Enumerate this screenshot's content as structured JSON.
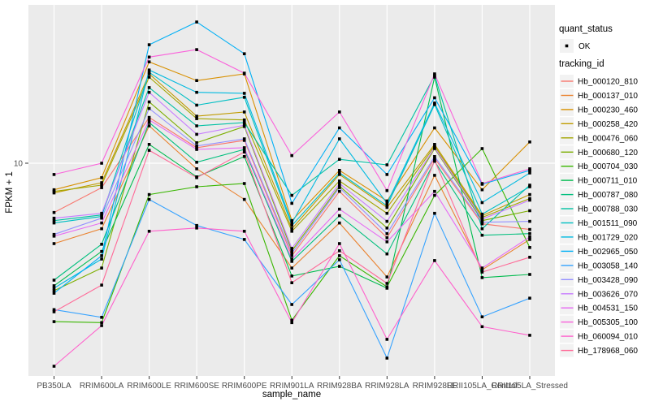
{
  "figure": {
    "panel_background": "#EBEBEB",
    "grid_color": "#FFFFFF",
    "axis_text_color": "#4D4D4D",
    "tick_color": "#333333",
    "legend_key_background": "#F2F2F2",
    "point_color": "#000000"
  },
  "axes": {
    "x_title": "sample_name",
    "y_title": "FPKM + 1",
    "y_tick_label": "10"
  },
  "legend": {
    "quant_status": {
      "title": "quant_status",
      "items": [
        {
          "label": "OK",
          "marker": "point"
        }
      ]
    },
    "tracking_id": {
      "title": "tracking_id"
    }
  },
  "chart_data": {
    "type": "line",
    "title": "",
    "xlabel": "sample_name",
    "ylabel": "FPKM + 1",
    "y_scale": "log10",
    "ylim": [
      1.2,
      50
    ],
    "y_tick_labels": [
      "10"
    ],
    "grid": true,
    "legend_position": "right",
    "marker": "point",
    "categories": [
      "PB350LA",
      "RRIM600LA",
      "RRIM600LE",
      "RRIM600SE",
      "RRIM600PE",
      "RRIM901LA",
      "RRIM928BA",
      "RRIM928LA",
      "RRIM928LE",
      "RRII105LA_Control",
      "RRII105LA_Stressed"
    ],
    "series": [
      {
        "name": "Hb_000120_810",
        "color": "#F8766D",
        "values": [
          6.07,
          7.81,
          15.9,
          11.7,
          12.6,
          3.92,
          7.52,
          4.7,
          10.5,
          5.41,
          5.11
        ]
      },
      {
        "name": "Hb_000137_010",
        "color": "#EA8331",
        "values": [
          4.43,
          5.15,
          14.6,
          9.45,
          6.93,
          3.46,
          5.46,
          3.16,
          8.85,
          3.4,
          4.62
        ]
      },
      {
        "name": "Hb_000230_460",
        "color": "#D89000",
        "values": [
          7.64,
          8.64,
          27.9,
          23.1,
          24.7,
          5.59,
          9.3,
          6.82,
          14.3,
          7.64,
          12.4
        ]
      },
      {
        "name": "Hb_000258_420",
        "color": "#C09B00",
        "values": [
          7.4,
          8.21,
          24.7,
          16.1,
          16.8,
          5.15,
          8.92,
          6.39,
          12.1,
          5.88,
          7.28
        ]
      },
      {
        "name": "Hb_000476_060",
        "color": "#A3A500",
        "values": [
          7.52,
          8.01,
          23.9,
          15.7,
          15.5,
          5.02,
          8.35,
          6.02,
          11.9,
          5.78,
          6.99
        ]
      },
      {
        "name": "Hb_000680_120",
        "color": "#7CAE00",
        "values": [
          2.75,
          3.46,
          18.6,
          12.3,
          14.5,
          4.12,
          7.94,
          5.19,
          11.6,
          5.59,
          6.18
        ]
      },
      {
        "name": "Hb_000704_030",
        "color": "#39B600",
        "values": [
          2.01,
          1.99,
          7.28,
          7.88,
          8.14,
          2.04,
          3.92,
          2.86,
          7.22,
          11.6,
          4.26
        ]
      },
      {
        "name": "Hb_000711_010",
        "color": "#00BB4E",
        "values": [
          2.89,
          4.09,
          12.1,
          8.71,
          10.7,
          3.19,
          3.52,
          2.82,
          23.9,
          3.14,
          3.24
        ]
      },
      {
        "name": "Hb_000787_080",
        "color": "#00BF7D",
        "values": [
          3.06,
          4.4,
          15.1,
          10.1,
          11.5,
          3.7,
          5.88,
          3.99,
          10.2,
          4.82,
          4.9
        ]
      },
      {
        "name": "Hb_000788_030",
        "color": "#00C1A3",
        "values": [
          5.59,
          5.92,
          21.5,
          14.6,
          15.1,
          7.22,
          10.4,
          9.84,
          24.3,
          5.15,
          8.01
        ]
      },
      {
        "name": "Hb_001511_090",
        "color": "#00BFC4",
        "values": [
          5.46,
          5.83,
          25.1,
          18.0,
          19.5,
          5.32,
          9.06,
          6.5,
          18.1,
          5.97,
          7.88
        ]
      },
      {
        "name": "Hb_001729_020",
        "color": "#00BAE0",
        "values": [
          2.82,
          3.79,
          25.7,
          20.5,
          20.3,
          5.46,
          12.8,
          6.66,
          18.4,
          6.71,
          9.06
        ]
      },
      {
        "name": "Hb_002965_050",
        "color": "#00B0F6",
        "values": [
          2.68,
          3.92,
          33.2,
          41.8,
          30.3,
          6.66,
          14.3,
          8.92,
          19.4,
          8.08,
          9.3
        ]
      },
      {
        "name": "Hb_003058_140",
        "color": "#35A2FF",
        "values": [
          2.27,
          2.1,
          6.93,
          5.32,
          4.62,
          2.39,
          3.76,
          1.39,
          6.02,
          2.11,
          2.55
        ]
      },
      {
        "name": "Hb_003428_090",
        "color": "#9590FF",
        "values": [
          4.86,
          5.73,
          17.4,
          11.9,
          12.8,
          4.02,
          7.81,
          4.9,
          10.7,
          5.5,
          5.55
        ]
      },
      {
        "name": "Hb_003626_070",
        "color": "#C77CFF",
        "values": [
          5.73,
          6.02,
          20.5,
          13.4,
          14.7,
          4.22,
          8.14,
          5.55,
          11.7,
          5.68,
          6.88
        ]
      },
      {
        "name": "Hb_004531_150",
        "color": "#E76BF3",
        "values": [
          4.78,
          5.46,
          15.5,
          11.5,
          11.7,
          3.79,
          6.28,
          4.51,
          7.52,
          3.46,
          4.74
        ]
      },
      {
        "name": "Hb_005305_100",
        "color": "#FA62DB",
        "values": [
          8.92,
          10.0,
          29.3,
          31.6,
          24.9,
          10.8,
          16.8,
          7.58,
          24.7,
          8.14,
          9.45
        ]
      },
      {
        "name": "Hb_060094_010",
        "color": "#FF61CC",
        "values": [
          1.28,
          1.93,
          5.02,
          5.19,
          5.02,
          1.99,
          4.43,
          1.68,
          3.73,
          1.91,
          1.75
        ]
      },
      {
        "name": "Hb_178968_060",
        "color": "#FF6A98",
        "values": [
          2.22,
          2.91,
          11.4,
          8.64,
          11.2,
          2.98,
          4.12,
          2.96,
          10.3,
          3.32,
          3.86
        ]
      }
    ]
  }
}
